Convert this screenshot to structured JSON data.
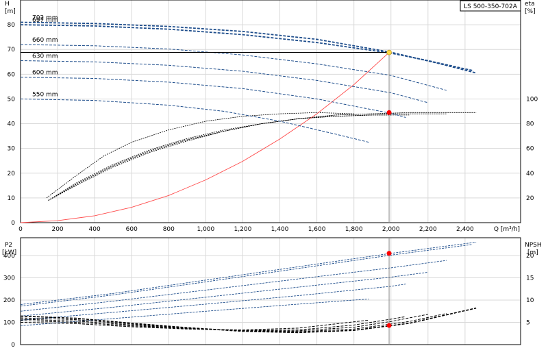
{
  "model_label": "LS 500-350-702A",
  "colors": {
    "curve_blue": "#1f4e8c",
    "system_curve": "#ff4a4a",
    "duty_red": "#ff0000",
    "duty_yellow": "#ffd84a",
    "grid": "#d9d9d9",
    "axis": "#000000",
    "duty_line": "#888888"
  },
  "chart_data": [
    {
      "type": "line",
      "title": "",
      "xlabel": "Q [m³/h]",
      "ylabel": "H [m]",
      "ylabel_top": "H",
      "ylabel_unit": "[m]",
      "y2label_top": "eta",
      "y2label_unit": "[%]",
      "xlim": [
        0,
        2700
      ],
      "ylim": [
        0,
        90
      ],
      "y2lim": [
        0,
        180
      ],
      "grid": true,
      "x_ticks": [
        0,
        200,
        400,
        600,
        800,
        1000,
        1200,
        1400,
        1600,
        1800,
        2000,
        2200,
        2400
      ],
      "x_tick_labels": [
        "0",
        "200",
        "400",
        "600",
        "800",
        "1,000",
        "1,200",
        "1,400",
        "1,600",
        "1,800",
        "2,000",
        "2,200",
        "2,400"
      ],
      "y_ticks": [
        0,
        10,
        20,
        30,
        40,
        50,
        60,
        70,
        80
      ],
      "y_tick_labels": [
        "0",
        "10",
        "20",
        "30",
        "40",
        "50",
        "60",
        "70",
        "80"
      ],
      "y2_ticks": [
        20,
        40,
        60,
        80,
        100
      ],
      "y2_tick_labels": [
        "20",
        "40",
        "60",
        "80",
        "100"
      ],
      "head_series": [
        {
          "name": "702 mm",
          "x": [
            0,
            400,
            800,
            1200,
            1600,
            2000,
            2250,
            2460
          ],
          "y": [
            81.0,
            80.5,
            79.3,
            77.3,
            74.1,
            68.9,
            64.5,
            60.5
          ],
          "style": "solid-dashed"
        },
        {
          "name": "697 mm",
          "x": [
            0,
            400,
            800,
            1200,
            1600,
            2000,
            2200,
            2440
          ],
          "y": [
            80.0,
            79.5,
            78.2,
            76.0,
            72.8,
            68.5,
            65.5,
            61.5
          ],
          "style": "dashed"
        },
        {
          "name": "660 mm",
          "x": [
            0,
            400,
            800,
            1200,
            1600,
            2000,
            2300
          ],
          "y": [
            72.0,
            71.5,
            70.2,
            67.8,
            64.2,
            59.5,
            53.5
          ],
          "style": "dashed"
        },
        {
          "name": "630 mm",
          "x": [
            0,
            400,
            800,
            1200,
            1600,
            2000,
            2200
          ],
          "y": [
            65.5,
            65.0,
            63.6,
            61.2,
            57.5,
            52.5,
            48.5
          ],
          "style": "dashed"
        },
        {
          "name": "600 mm",
          "x": [
            0,
            400,
            800,
            1200,
            1600,
            2000,
            2080
          ],
          "y": [
            58.8,
            58.3,
            56.8,
            54.2,
            50.0,
            44.2,
            42.5
          ],
          "style": "dashed"
        },
        {
          "name": "550 mm",
          "x": [
            0,
            400,
            800,
            1100,
            1400,
            1700,
            1880
          ],
          "y": [
            50.0,
            49.4,
            47.5,
            45.0,
            41.0,
            35.8,
            32.5
          ],
          "style": "solid-dashed"
        }
      ],
      "efficiency_series": [
        {
          "x": [
            140,
            300,
            450,
            600,
            800,
            1000,
            1200,
            1400,
            1600,
            1800
          ],
          "y": [
            20,
            38,
            54,
            65,
            75,
            82,
            86,
            88,
            89,
            88
          ]
        },
        {
          "x": [
            150,
            300,
            500,
            700,
            900,
            1100,
            1300,
            1500,
            1700,
            1900,
            2000
          ],
          "y": [
            18,
            32,
            47,
            59,
            68,
            75,
            80,
            84,
            86,
            87,
            87
          ]
        },
        {
          "x": [
            150,
            300,
            500,
            700,
            900,
            1100,
            1300,
            1500,
            1700,
            1900,
            2100
          ],
          "y": [
            18,
            31,
            46,
            58,
            67,
            74,
            80,
            84,
            86,
            87,
            87
          ]
        },
        {
          "x": [
            150,
            300,
            500,
            700,
            900,
            1100,
            1300,
            1500,
            1700,
            1900,
            2100,
            2300
          ],
          "y": [
            18,
            31,
            46,
            58,
            67,
            74,
            80,
            84,
            87,
            88,
            88,
            88
          ]
        },
        {
          "x": [
            150,
            300,
            500,
            700,
            900,
            1100,
            1300,
            1500,
            1700,
            1900,
            2100,
            2300,
            2460
          ],
          "y": [
            18,
            30,
            45,
            57,
            66,
            74,
            80,
            84,
            87,
            88,
            89,
            89,
            89
          ]
        }
      ],
      "system_curve": {
        "x": [
          0,
          200,
          400,
          600,
          800,
          1000,
          1200,
          1400,
          1600,
          1800,
          1990
        ],
        "y": [
          0,
          0.8,
          2.8,
          6.2,
          11.0,
          17.3,
          24.8,
          33.8,
          44.0,
          55.8,
          68.8
        ]
      },
      "duty_point": {
        "q": 1990,
        "h": 68.8,
        "eta": 89
      }
    },
    {
      "type": "line",
      "title": "",
      "xlabel": "",
      "ylabel": "P2 [kW]",
      "ylabel_top": "P2",
      "ylabel_unit": "[kW]",
      "y2label_top": "NPSH",
      "y2label_unit": "[m]",
      "xlim": [
        0,
        2700
      ],
      "ylim": [
        0,
        480
      ],
      "y2lim": [
        0,
        24
      ],
      "grid": true,
      "y_ticks": [
        0,
        100,
        200,
        300,
        400
      ],
      "y_tick_labels": [
        "0",
        "100",
        "200",
        "300",
        "400"
      ],
      "y2_ticks": [
        5,
        10,
        15,
        20
      ],
      "y2_tick_labels": [
        "5",
        "10",
        "15",
        "20"
      ],
      "power_series": [
        {
          "x": [
            0,
            500,
            1000,
            1500,
            2000,
            2460
          ],
          "y": [
            180,
            230,
            290,
            350,
            410,
            460
          ]
        },
        {
          "x": [
            0,
            500,
            1000,
            1500,
            2000,
            2440
          ],
          "y": [
            173,
            223,
            282,
            342,
            402,
            450
          ]
        },
        {
          "x": [
            0,
            500,
            1000,
            1500,
            2000,
            2300
          ],
          "y": [
            150,
            195,
            245,
            295,
            345,
            378
          ]
        },
        {
          "x": [
            0,
            500,
            1000,
            1500,
            2000,
            2200
          ],
          "y": [
            128,
            168,
            213,
            258,
            303,
            325
          ]
        },
        {
          "x": [
            0,
            500,
            1000,
            1500,
            2000,
            2080
          ],
          "y": [
            110,
            145,
            182,
            220,
            262,
            272
          ]
        },
        {
          "x": [
            0,
            500,
            1000,
            1500,
            1880
          ],
          "y": [
            85,
            117,
            150,
            182,
            205
          ]
        }
      ],
      "npsh_series": [
        {
          "x": [
            0,
            300,
            600,
            900,
            1200,
            1500,
            1800,
            2100,
            2460
          ],
          "y": [
            6.4,
            5.9,
            4.8,
            3.8,
            3.0,
            2.7,
            3.2,
            4.8,
            8.2
          ]
        },
        {
          "x": [
            0,
            300,
            600,
            900,
            1200,
            1500,
            1800,
            2100,
            2300
          ],
          "y": [
            6.0,
            5.6,
            4.6,
            3.7,
            3.1,
            2.9,
            3.5,
            5.2,
            7.0
          ]
        },
        {
          "x": [
            0,
            300,
            600,
            900,
            1200,
            1500,
            1800,
            2000,
            2200
          ],
          "y": [
            5.7,
            5.3,
            4.4,
            3.6,
            3.1,
            3.1,
            3.9,
            5.2,
            6.8
          ]
        },
        {
          "x": [
            0,
            300,
            600,
            900,
            1200,
            1500,
            1800,
            2000,
            2080
          ],
          "y": [
            5.4,
            5.0,
            4.2,
            3.6,
            3.2,
            3.3,
            4.4,
            5.7,
            6.3
          ]
        },
        {
          "x": [
            0,
            300,
            600,
            900,
            1200,
            1500,
            1880
          ],
          "y": [
            5.0,
            4.7,
            4.0,
            3.5,
            3.3,
            3.7,
            5.5
          ]
        }
      ],
      "duty_points": {
        "q": 1990,
        "p2": 410,
        "npsh": 4.3
      }
    }
  ]
}
